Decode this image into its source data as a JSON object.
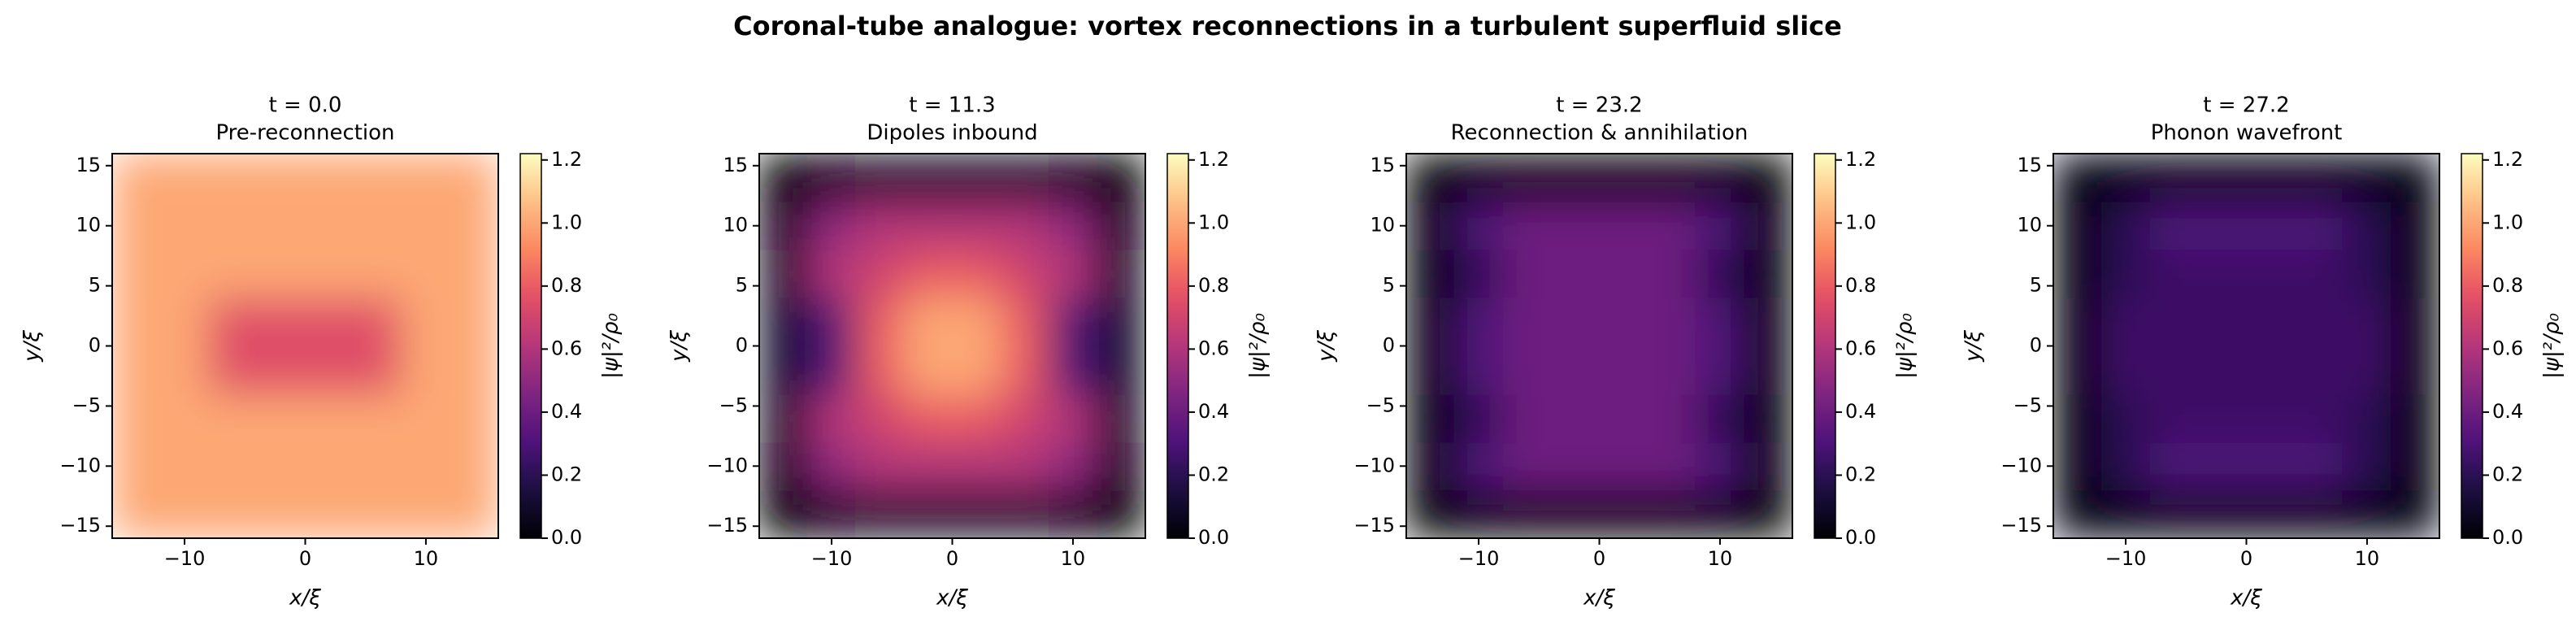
{
  "title": "Coronal-tube analogue: vortex reconnections in a turbulent superfluid slice",
  "chart_data": [
    {
      "type": "heatmap",
      "title": "t = 0.0",
      "subtitle": "Pre-reconnection",
      "colormap": "magma",
      "x": [
        -14,
        -10,
        -6,
        -2,
        2,
        6,
        10,
        14
      ],
      "y": [
        -14,
        -10,
        -6,
        -2,
        2,
        6,
        10,
        14
      ],
      "z": [
        [
          1.0,
          1.0,
          1.0,
          1.0,
          1.0,
          1.0,
          1.0,
          1.0
        ],
        [
          1.0,
          1.0,
          1.0,
          1.0,
          1.0,
          1.0,
          1.0,
          1.0
        ],
        [
          1.0,
          1.0,
          1.0,
          1.0,
          1.0,
          1.0,
          1.0,
          1.0
        ],
        [
          1.0,
          1.0,
          0.75,
          0.75,
          0.75,
          0.75,
          1.0,
          1.0
        ],
        [
          1.0,
          1.0,
          0.75,
          0.75,
          0.75,
          0.75,
          1.0,
          1.0
        ],
        [
          1.0,
          1.0,
          1.0,
          1.0,
          1.0,
          1.0,
          1.0,
          1.0
        ],
        [
          1.0,
          1.0,
          1.0,
          1.0,
          1.0,
          1.0,
          1.0,
          1.0
        ],
        [
          1.0,
          1.0,
          1.0,
          1.0,
          1.0,
          1.0,
          1.0,
          1.0
        ]
      ],
      "xlim": [
        -16,
        16
      ],
      "ylim": [
        -16,
        16
      ],
      "xticks": [
        {
          "value": -10,
          "label": "−10"
        },
        0,
        10
      ],
      "yticks": [
        {
          "value": -15,
          "label": "−15"
        },
        {
          "value": -10,
          "label": "−10"
        },
        {
          "value": -5,
          "label": "−5"
        },
        0,
        5,
        10,
        15
      ],
      "xlabel": "x/ξ",
      "ylabel": "y/ξ",
      "colorbar": {
        "label": "|ψ|²/ρ₀",
        "lim": [
          0,
          1.22
        ],
        "ticks": [
          {
            "value": 0,
            "label": "0.0"
          },
          {
            "value": 0.2,
            "label": "0.2"
          },
          {
            "value": 0.4,
            "label": "0.4"
          },
          {
            "value": 0.6,
            "label": "0.6"
          },
          {
            "value": 0.8,
            "label": "0.8"
          },
          {
            "value": 1,
            "label": "1.0"
          },
          {
            "value": 1.2,
            "label": "1.2"
          }
        ]
      }
    },
    {
      "type": "heatmap",
      "title": "t = 11.3",
      "subtitle": "Dipoles inbound",
      "colormap": "magma",
      "x": [
        -14,
        -10,
        -6,
        -2,
        2,
        6,
        10,
        14
      ],
      "y": [
        -14,
        -10,
        -6,
        -2,
        2,
        6,
        10,
        14
      ],
      "z": [
        [
          0,
          0.05,
          0.1,
          0.1,
          0.1,
          0.1,
          0.05,
          0
        ],
        [
          0.05,
          0.5,
          0.6,
          0.6,
          0.6,
          0.6,
          0.5,
          0.05
        ],
        [
          0.1,
          0.6,
          0.7,
          0.8,
          0.8,
          0.7,
          0.6,
          0.1
        ],
        [
          0.1,
          0.3,
          0.8,
          1.0,
          1.0,
          0.8,
          0.3,
          0.1
        ],
        [
          0.1,
          0.3,
          0.8,
          1.0,
          1.0,
          0.8,
          0.3,
          0.1
        ],
        [
          0.1,
          0.6,
          0.7,
          0.8,
          0.8,
          0.7,
          0.6,
          0.1
        ],
        [
          0.05,
          0.5,
          0.6,
          0.6,
          0.6,
          0.6,
          0.5,
          0.05
        ],
        [
          0,
          0.05,
          0.1,
          0.1,
          0.1,
          0.1,
          0.05,
          0
        ]
      ],
      "xlim": [
        -16,
        16
      ],
      "ylim": [
        -16,
        16
      ],
      "xticks": [
        {
          "value": -10,
          "label": "−10"
        },
        0,
        10
      ],
      "yticks": [
        {
          "value": -15,
          "label": "−15"
        },
        {
          "value": -10,
          "label": "−10"
        },
        {
          "value": -5,
          "label": "−5"
        },
        0,
        5,
        10,
        15
      ],
      "xlabel": "x/ξ",
      "ylabel": "y/ξ",
      "colorbar": {
        "label": "|ψ|²/ρ₀",
        "lim": [
          0,
          1.22
        ],
        "ticks": [
          {
            "value": 0,
            "label": "0.0"
          },
          {
            "value": 0.2,
            "label": "0.2"
          },
          {
            "value": 0.4,
            "label": "0.4"
          },
          {
            "value": 0.6,
            "label": "0.6"
          },
          {
            "value": 0.8,
            "label": "0.8"
          },
          {
            "value": 1,
            "label": "1.0"
          },
          {
            "value": 1.2,
            "label": "1.2"
          }
        ]
      }
    },
    {
      "type": "heatmap",
      "title": "t = 23.2",
      "subtitle": "Reconnection & annihilation",
      "colormap": "magma",
      "x": [
        -14,
        -10,
        -6,
        -2,
        2,
        6,
        10,
        14
      ],
      "y": [
        -14,
        -10,
        -6,
        -2,
        2,
        6,
        10,
        14
      ],
      "z": [
        [
          0,
          0,
          0,
          0,
          0,
          0,
          0,
          0
        ],
        [
          0,
          0.3,
          0.4,
          0.4,
          0.4,
          0.4,
          0.3,
          0
        ],
        [
          0,
          0.2,
          0.4,
          0.4,
          0.4,
          0.4,
          0.2,
          0
        ],
        [
          0,
          0.3,
          0.4,
          0.4,
          0.4,
          0.4,
          0.3,
          0
        ],
        [
          0,
          0.3,
          0.4,
          0.4,
          0.4,
          0.4,
          0.3,
          0
        ],
        [
          0,
          0.2,
          0.4,
          0.4,
          0.4,
          0.4,
          0.2,
          0
        ],
        [
          0,
          0.3,
          0.4,
          0.4,
          0.4,
          0.4,
          0.3,
          0
        ],
        [
          0,
          0,
          0,
          0,
          0,
          0,
          0,
          0
        ]
      ],
      "xlim": [
        -16,
        16
      ],
      "ylim": [
        -16,
        16
      ],
      "xticks": [
        {
          "value": -10,
          "label": "−10"
        },
        0,
        10
      ],
      "yticks": [
        {
          "value": -15,
          "label": "−15"
        },
        {
          "value": -10,
          "label": "−10"
        },
        {
          "value": -5,
          "label": "−5"
        },
        0,
        5,
        10,
        15
      ],
      "xlabel": "x/ξ",
      "ylabel": "y/ξ",
      "colorbar": {
        "label": "|ψ|²/ρ₀",
        "lim": [
          0,
          1.22
        ],
        "ticks": [
          {
            "value": 0,
            "label": "0.0"
          },
          {
            "value": 0.2,
            "label": "0.2"
          },
          {
            "value": 0.4,
            "label": "0.4"
          },
          {
            "value": 0.6,
            "label": "0.6"
          },
          {
            "value": 0.8,
            "label": "0.8"
          },
          {
            "value": 1,
            "label": "1.0"
          },
          {
            "value": 1.2,
            "label": "1.2"
          }
        ]
      }
    },
    {
      "type": "heatmap",
      "title": "t = 27.2",
      "subtitle": "Phonon wavefront",
      "colormap": "magma",
      "x": [
        -14,
        -10,
        -6,
        -2,
        2,
        6,
        10,
        14
      ],
      "y": [
        -14,
        -10,
        -6,
        -2,
        2,
        6,
        10,
        14
      ],
      "z": [
        [
          0.02,
          0.02,
          0.02,
          0.02,
          0.02,
          0.02,
          0.02,
          0.02
        ],
        [
          0,
          0.2,
          0.3,
          0.3,
          0.3,
          0.3,
          0.2,
          0
        ],
        [
          0,
          0.2,
          0.25,
          0.25,
          0.25,
          0.25,
          0.2,
          0
        ],
        [
          0,
          0.25,
          0.25,
          0.25,
          0.25,
          0.25,
          0.25,
          0
        ],
        [
          0,
          0.25,
          0.25,
          0.25,
          0.25,
          0.25,
          0.25,
          0
        ],
        [
          0,
          0.2,
          0.25,
          0.25,
          0.25,
          0.25,
          0.2,
          0
        ],
        [
          0,
          0.2,
          0.3,
          0.3,
          0.3,
          0.3,
          0.2,
          0
        ],
        [
          0.02,
          0.02,
          0.02,
          0.02,
          0.02,
          0.02,
          0.02,
          0.02
        ]
      ],
      "xlim": [
        -16,
        16
      ],
      "ylim": [
        -16,
        16
      ],
      "xticks": [
        {
          "value": -10,
          "label": "−10"
        },
        0,
        10
      ],
      "yticks": [
        {
          "value": -15,
          "label": "−15"
        },
        {
          "value": -10,
          "label": "−10"
        },
        {
          "value": -5,
          "label": "−5"
        },
        0,
        5,
        10,
        15
      ],
      "xlabel": "x/ξ",
      "ylabel": "y/ξ",
      "colorbar": {
        "label": "|ψ|²/ρ₀",
        "lim": [
          0,
          1.22
        ],
        "ticks": [
          {
            "value": 0,
            "label": "0.0"
          },
          {
            "value": 0.2,
            "label": "0.2"
          },
          {
            "value": 0.4,
            "label": "0.4"
          },
          {
            "value": 0.6,
            "label": "0.6"
          },
          {
            "value": 0.8,
            "label": "0.8"
          },
          {
            "value": 1,
            "label": "1.0"
          },
          {
            "value": 1.2,
            "label": "1.2"
          }
        ]
      }
    }
  ]
}
